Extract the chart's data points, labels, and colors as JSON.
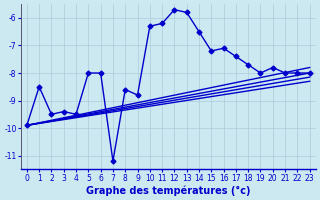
{
  "background_color": "#cce8f0",
  "grid_color": "#aaccdd",
  "line_color": "#0000cc",
  "marker_style": "D",
  "marker_size": 2.5,
  "line_width": 1.0,
  "xlabel": "Graphe des températures (°c)",
  "xlabel_color": "#0000cc",
  "xlabel_fontsize": 7,
  "tick_color": "#0000cc",
  "tick_fontsize": 5.5,
  "xlim": [
    -0.5,
    23.5
  ],
  "ylim": [
    -11.5,
    -5.5
  ],
  "yticks": [
    -11,
    -10,
    -9,
    -8,
    -7,
    -6
  ],
  "xticks": [
    0,
    1,
    2,
    3,
    4,
    5,
    6,
    7,
    8,
    9,
    10,
    11,
    12,
    13,
    14,
    15,
    16,
    17,
    18,
    19,
    20,
    21,
    22,
    23
  ],
  "main_curve_x": [
    0,
    1,
    2,
    3,
    4,
    5,
    6,
    7,
    8,
    9,
    10,
    11,
    12,
    13,
    14,
    15,
    16,
    17,
    18,
    19,
    20,
    21,
    22,
    23
  ],
  "main_curve_y": [
    -9.9,
    -8.5,
    -9.5,
    -9.4,
    -9.5,
    -8.0,
    -8.0,
    -11.2,
    -8.6,
    -8.8,
    -6.3,
    -6.2,
    -5.7,
    -5.8,
    -6.5,
    -7.2,
    -7.1,
    -7.4,
    -7.7,
    -8.0,
    -7.8,
    -8.0,
    -8.0,
    -8.0
  ],
  "straight_lines": [
    {
      "x": [
        0,
        23
      ],
      "y": [
        -9.9,
        -7.8
      ]
    },
    {
      "x": [
        0,
        23
      ],
      "y": [
        -9.9,
        -8.0
      ]
    },
    {
      "x": [
        0,
        23
      ],
      "y": [
        -9.9,
        -8.15
      ]
    },
    {
      "x": [
        0,
        23
      ],
      "y": [
        -9.9,
        -8.3
      ]
    }
  ]
}
